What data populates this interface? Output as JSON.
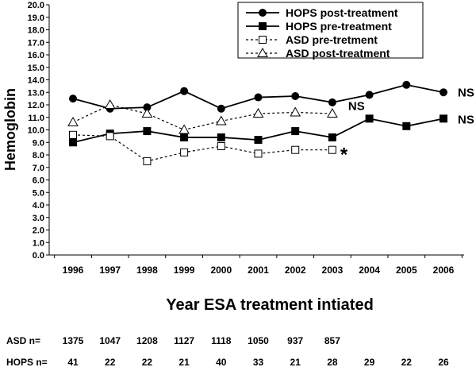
{
  "chart_data": {
    "type": "line",
    "xlabel": "Year ESA treatment intiated",
    "ylabel": "Hemoglobin",
    "ylim": [
      0,
      20
    ],
    "ytick_step": 1,
    "categories": [
      "1996",
      "1997",
      "1998",
      "1999",
      "2000",
      "2001",
      "2002",
      "2003",
      "2004",
      "2005",
      "2006"
    ],
    "legend_position": "top-right",
    "series": [
      {
        "name": "HOPS post-treatment",
        "marker": "circle-filled",
        "line": "solid",
        "values": [
          12.5,
          11.7,
          11.8,
          13.1,
          11.7,
          12.6,
          12.7,
          12.2,
          12.8,
          13.6,
          13.0
        ]
      },
      {
        "name": "HOPS pre-treatment",
        "marker": "square-filled",
        "line": "solid",
        "values": [
          9.0,
          9.7,
          9.9,
          9.4,
          9.4,
          9.2,
          9.9,
          9.4,
          10.9,
          10.3,
          10.9
        ]
      },
      {
        "name": "ASD pre-tretment",
        "marker": "square-open",
        "line": "dotted",
        "values": [
          9.6,
          9.5,
          7.5,
          8.2,
          8.7,
          8.1,
          8.4,
          8.4,
          null,
          null,
          null
        ]
      },
      {
        "name": "ASD post-treatment",
        "marker": "triangle-open",
        "line": "dotted",
        "values": [
          10.6,
          12.0,
          11.3,
          10.0,
          10.7,
          11.3,
          11.4,
          11.3,
          null,
          null,
          null
        ]
      }
    ],
    "annotations": [
      {
        "text": "NS",
        "x": "2006",
        "y": 13.0
      },
      {
        "text": "NS",
        "x": "2003",
        "y": 11.4
      },
      {
        "text": "NS",
        "x": "2006",
        "y": 10.9
      },
      {
        "text": "*",
        "x": "2003",
        "y": 8.4
      }
    ]
  },
  "counts": {
    "asd_label": "ASD n=",
    "asd": [
      "1375",
      "1047",
      "1208",
      "1127",
      "1118",
      "1050",
      "937",
      "857",
      "",
      "",
      ""
    ],
    "hops_label": "HOPS n=",
    "hops": [
      "41",
      "22",
      "22",
      "21",
      "40",
      "33",
      "21",
      "28",
      "29",
      "22",
      "26"
    ]
  }
}
